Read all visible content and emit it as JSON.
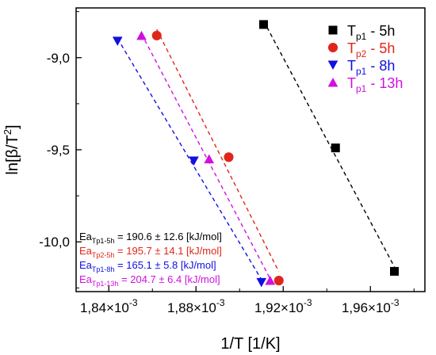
{
  "chart_data": {
    "type": "scatter",
    "xlabel": "1/T [1/K]",
    "ylabel_main": "ln[β/T",
    "ylabel_sup": "2",
    "ylabel_tail": "]",
    "xlim": [
      0.001825,
      0.001985
    ],
    "ylim": [
      -10.27,
      -8.73
    ],
    "x_ticks": [
      {
        "value": 0.00184,
        "mantissa": "1,84×10",
        "exp": "-3"
      },
      {
        "value": 0.00188,
        "mantissa": "1,88×10",
        "exp": "-3"
      },
      {
        "value": 0.00192,
        "mantissa": "1,92×10",
        "exp": "-3"
      },
      {
        "value": 0.00196,
        "mantissa": "1,96×10",
        "exp": "-3"
      }
    ],
    "y_ticks": [
      {
        "value": -9.0,
        "label": "-9,0"
      },
      {
        "value": -9.5,
        "label": "-9,5"
      },
      {
        "value": -10.0,
        "label": "-10,0"
      }
    ],
    "series": [
      {
        "legend_main": "T",
        "legend_sub": "p1",
        "legend_tail": " - 5h",
        "color": "#000000",
        "marker": "square",
        "x": [
          0.001911,
          0.001944,
          0.001971
        ],
        "y": [
          -8.82,
          -9.49,
          -10.16
        ]
      },
      {
        "legend_main": "T",
        "legend_sub": "p2",
        "legend_tail": " - 5h",
        "color": "#e0251b",
        "marker": "circle",
        "x": [
          0.001862,
          0.001895,
          0.001918
        ],
        "y": [
          -8.88,
          -9.54,
          -10.21
        ]
      },
      {
        "legend_main": "T",
        "legend_sub": "p1",
        "legend_tail": " - 8h",
        "color": "#1010e0",
        "marker": "triangle-down",
        "x": [
          0.001844,
          0.001879,
          0.00191
        ],
        "y": [
          -8.91,
          -9.56,
          -10.22
        ]
      },
      {
        "legend_main": "T",
        "legend_sub": "p1",
        "legend_tail": " - 13h",
        "color": "#d010e0",
        "marker": "triangle-up",
        "x": [
          0.001855,
          0.001886,
          0.001914
        ],
        "y": [
          -8.88,
          -9.55,
          -10.21
        ]
      }
    ],
    "annotations": [
      {
        "main": "Ea",
        "sub": "Tp1-5h",
        "value": " = 190.6 ± 12.6 [kJ/mol]",
        "color": "#000000"
      },
      {
        "main": "Ea",
        "sub": "Tp2-5h",
        "value": " = 195.7 ± 14.1 [kJ/mol]",
        "color": "#e0251b"
      },
      {
        "main": "Ea",
        "sub": "Tp1-8h",
        "value": " = 165.1 ± 5.8 [kJ/mol]",
        "color": "#1010e0"
      },
      {
        "main": "Ea",
        "sub": "Tp1-13h",
        "value": " = 204.7 ± 6.4 [kJ/mol]",
        "color": "#d010e0"
      }
    ],
    "grid": false,
    "legend_position": "top-right"
  }
}
